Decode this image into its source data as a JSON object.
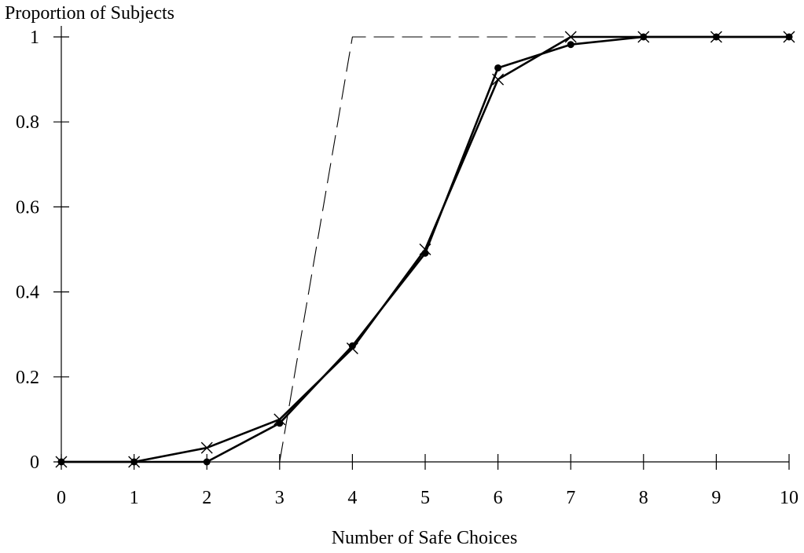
{
  "chart_data": {
    "type": "line",
    "title": "",
    "xlabel": "Number of Safe Choices",
    "ylabel": "Proportion of Subjects",
    "xlim": [
      0,
      10
    ],
    "ylim": [
      0,
      1
    ],
    "x_ticks": [
      0,
      1,
      2,
      3,
      4,
      5,
      6,
      7,
      8,
      9,
      10
    ],
    "y_ticks": [
      0,
      0.2,
      0.4,
      0.6,
      0.8,
      1
    ],
    "y_tick_labels": [
      "0",
      "0.2",
      "0.4",
      "0.6",
      "0.8",
      "1"
    ],
    "grid": false,
    "legend": "none",
    "series": [
      {
        "marker": "x",
        "style": "solid",
        "color": "#000000",
        "x": [
          0,
          1,
          2,
          3,
          4,
          5,
          6,
          7,
          8,
          9,
          10
        ],
        "y": [
          0,
          0,
          0.033,
          0.1,
          0.267,
          0.5,
          0.9,
          1,
          1,
          1,
          1
        ]
      },
      {
        "marker": "dot",
        "style": "solid",
        "color": "#000000",
        "x": [
          0,
          1,
          2,
          3,
          4,
          5,
          6,
          7,
          8,
          9,
          10
        ],
        "y": [
          0,
          0,
          0,
          0.091,
          0.273,
          0.491,
          0.927,
          0.982,
          1,
          1,
          1
        ]
      },
      {
        "marker": "none",
        "style": "dashed",
        "color": "#000000",
        "x": [
          3,
          4,
          10
        ],
        "y": [
          0,
          1,
          1
        ]
      }
    ]
  }
}
